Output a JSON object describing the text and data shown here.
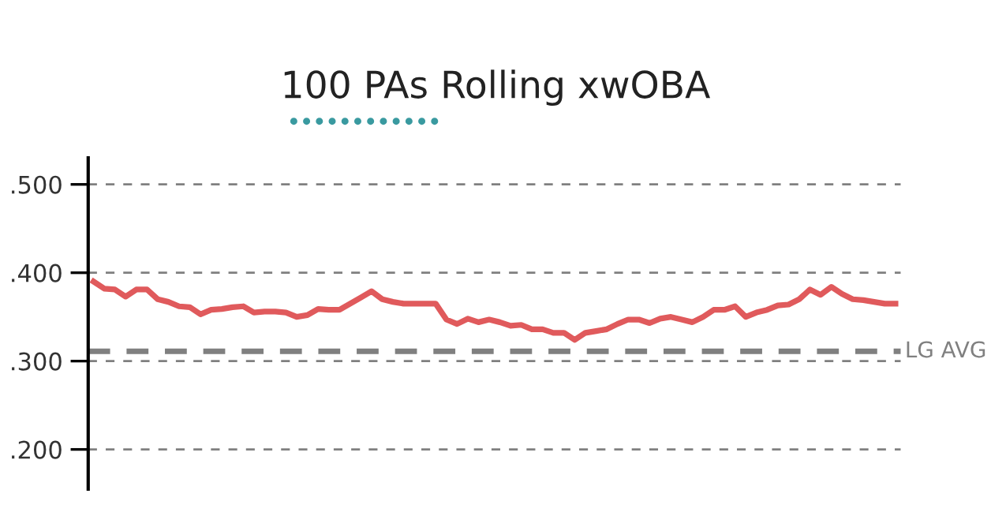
{
  "chart_data": {
    "type": "line",
    "title": "100 PAs Rolling xwOBA",
    "categories": [
      null,
      null,
      null,
      null,
      null,
      null,
      null,
      null,
      null,
      null,
      null,
      null,
      null,
      null,
      null,
      null,
      null,
      null,
      null,
      null,
      null,
      null,
      null,
      null,
      null,
      null,
      null,
      null,
      null,
      null,
      null,
      null,
      null,
      null,
      null,
      null,
      null,
      null,
      null,
      null,
      null,
      null,
      null,
      null,
      null,
      null,
      null,
      null,
      null,
      null,
      null,
      null,
      null,
      null,
      null,
      null,
      null,
      null,
      null,
      null,
      null,
      null,
      null,
      null,
      null,
      null,
      null,
      null,
      null,
      null,
      null,
      null,
      null,
      null,
      null,
      null
    ],
    "series": [
      {
        "color": "#e05a5c",
        "values": [
          0.39,
          0.382,
          0.381,
          0.373,
          0.381,
          0.381,
          0.37,
          0.367,
          0.362,
          0.361,
          0.353,
          0.358,
          0.359,
          0.361,
          0.362,
          0.355,
          0.356,
          0.356,
          0.355,
          0.35,
          0.352,
          0.359,
          0.358,
          0.358,
          0.365,
          0.372,
          0.379,
          0.37,
          0.367,
          0.365,
          0.365,
          0.365,
          0.365,
          0.347,
          0.342,
          0.348,
          0.344,
          0.347,
          0.344,
          0.34,
          0.341,
          0.336,
          0.336,
          0.332,
          0.332,
          0.324,
          0.332,
          0.334,
          0.336,
          0.342,
          0.347,
          0.347,
          0.343,
          0.348,
          0.35,
          0.347,
          0.344,
          0.35,
          0.358,
          0.358,
          0.362,
          0.35,
          0.355,
          0.358,
          0.363,
          0.364,
          0.37,
          0.381,
          0.375,
          0.384,
          0.376,
          0.37,
          0.369,
          0.367,
          0.365,
          0.365
        ]
      }
    ],
    "ylim": [
      0.155,
      0.53
    ],
    "yticks": [
      {
        "value": 0.2,
        "label": ".200"
      },
      {
        "value": 0.3,
        "label": ".300"
      },
      {
        "value": 0.4,
        "label": ".400"
      },
      {
        "value": 0.5,
        "label": ".500"
      }
    ],
    "grid": "y",
    "line_style": "solid",
    "tick_labels": "y",
    "ref_lines": [
      {
        "axis": "y",
        "value": 0.311,
        "label": "LG AVG",
        "color": "#808080",
        "line_style": "dashed"
      }
    ]
  }
}
